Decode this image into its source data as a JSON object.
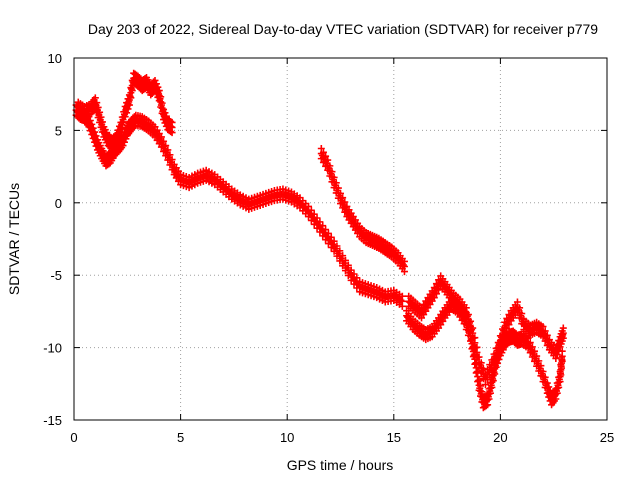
{
  "chart_data": {
    "type": "scatter",
    "title": "Day 203 of 2022, Sidereal Day-to-day VTEC variation (SDTVAR) for receiver p779",
    "xlabel": "GPS time / hours",
    "ylabel": "SDTVAR / TECUs",
    "xlim": [
      0,
      25
    ],
    "ylim": [
      -15,
      10
    ],
    "x_ticks": [
      "0",
      "5",
      "10",
      "15",
      "20",
      "25"
    ],
    "y_ticks": [
      "10",
      "5",
      "0",
      "-5",
      "-10",
      "-15"
    ],
    "grid": true,
    "marker": "+",
    "color": "#ff0000",
    "series": [
      {
        "name": "track-main",
        "points": [
          [
            0.1,
            6.4
          ],
          [
            0.3,
            6.1
          ],
          [
            0.5,
            6.0
          ],
          [
            0.7,
            5.6
          ],
          [
            0.9,
            4.8
          ],
          [
            1.1,
            4.0
          ],
          [
            1.3,
            3.4
          ],
          [
            1.5,
            2.9
          ],
          [
            1.7,
            3.1
          ],
          [
            1.9,
            3.6
          ],
          [
            2.1,
            3.9
          ],
          [
            2.3,
            4.3
          ],
          [
            2.5,
            5.0
          ],
          [
            2.7,
            5.4
          ],
          [
            2.9,
            5.7
          ],
          [
            3.2,
            5.6
          ],
          [
            3.5,
            5.3
          ],
          [
            3.8,
            4.9
          ],
          [
            4.1,
            4.2
          ],
          [
            4.4,
            3.3
          ],
          [
            4.7,
            2.3
          ],
          [
            5.0,
            1.6
          ],
          [
            5.4,
            1.4
          ],
          [
            5.8,
            1.7
          ],
          [
            6.2,
            1.9
          ],
          [
            6.6,
            1.6
          ],
          [
            7.0,
            1.1
          ],
          [
            7.4,
            0.6
          ],
          [
            7.8,
            0.2
          ],
          [
            8.2,
            -0.1
          ],
          [
            8.6,
            0.1
          ],
          [
            9.0,
            0.3
          ],
          [
            9.4,
            0.5
          ],
          [
            9.8,
            0.6
          ],
          [
            10.2,
            0.4
          ],
          [
            10.6,
            0.0
          ],
          [
            11.0,
            -0.6
          ],
          [
            11.4,
            -1.4
          ],
          [
            11.8,
            -2.2
          ],
          [
            12.2,
            -3.0
          ],
          [
            12.6,
            -4.0
          ],
          [
            13.0,
            -5.0
          ],
          [
            13.4,
            -5.8
          ],
          [
            13.8,
            -6.0
          ],
          [
            14.2,
            -6.2
          ],
          [
            14.6,
            -6.5
          ],
          [
            15.0,
            -6.4
          ],
          [
            15.4,
            -6.8
          ]
        ]
      },
      {
        "name": "track-upper-morning",
        "points": [
          [
            0.2,
            6.6
          ],
          [
            0.5,
            6.3
          ],
          [
            0.8,
            6.5
          ],
          [
            1.0,
            6.9
          ],
          [
            1.2,
            5.9
          ],
          [
            1.4,
            4.9
          ],
          [
            1.6,
            4.3
          ],
          [
            1.8,
            4.1
          ],
          [
            2.0,
            4.4
          ],
          [
            2.2,
            5.2
          ],
          [
            2.4,
            6.3
          ],
          [
            2.6,
            7.1
          ],
          [
            2.8,
            8.6
          ],
          [
            3.0,
            8.4
          ],
          [
            3.2,
            8.1
          ],
          [
            3.4,
            8.3
          ],
          [
            3.6,
            7.8
          ],
          [
            3.8,
            8.1
          ],
          [
            4.0,
            7.4
          ],
          [
            4.2,
            6.1
          ],
          [
            4.4,
            5.4
          ],
          [
            4.6,
            5.2
          ]
        ]
      },
      {
        "name": "track-sharp",
        "points": [
          [
            11.6,
            3.4
          ],
          [
            11.9,
            2.6
          ],
          [
            12.2,
            1.4
          ],
          [
            12.5,
            0.3
          ],
          [
            12.8,
            -0.6
          ],
          [
            13.1,
            -1.3
          ],
          [
            13.4,
            -2.0
          ],
          [
            13.7,
            -2.4
          ],
          [
            14.0,
            -2.6
          ],
          [
            14.3,
            -2.8
          ],
          [
            14.6,
            -3.1
          ],
          [
            14.9,
            -3.4
          ],
          [
            15.2,
            -3.8
          ],
          [
            15.5,
            -4.4
          ]
        ]
      },
      {
        "name": "track-evening",
        "points": [
          [
            15.6,
            -7.8
          ],
          [
            15.9,
            -8.4
          ],
          [
            16.2,
            -8.8
          ],
          [
            16.5,
            -9.1
          ],
          [
            16.8,
            -8.9
          ],
          [
            17.1,
            -8.3
          ],
          [
            17.4,
            -7.6
          ],
          [
            17.7,
            -7.0
          ],
          [
            18.0,
            -7.3
          ],
          [
            18.3,
            -8.0
          ],
          [
            18.6,
            -9.2
          ],
          [
            18.8,
            -10.8
          ],
          [
            19.0,
            -12.6
          ],
          [
            19.2,
            -13.8
          ],
          [
            19.4,
            -13.6
          ],
          [
            19.6,
            -12.4
          ],
          [
            19.8,
            -11.0
          ],
          [
            20.0,
            -10.2
          ],
          [
            20.2,
            -9.6
          ],
          [
            20.4,
            -9.3
          ],
          [
            20.6,
            -9.2
          ],
          [
            20.8,
            -9.5
          ],
          [
            21.0,
            -9.4
          ],
          [
            21.3,
            -9.7
          ],
          [
            21.6,
            -10.6
          ],
          [
            21.9,
            -11.6
          ],
          [
            22.2,
            -12.8
          ],
          [
            22.4,
            -13.6
          ],
          [
            22.6,
            -13.2
          ],
          [
            22.8,
            -12.0
          ],
          [
            22.9,
            -10.6
          ]
        ]
      },
      {
        "name": "track-evening-upper",
        "points": [
          [
            15.7,
            -6.8
          ],
          [
            16.0,
            -7.2
          ],
          [
            16.3,
            -7.6
          ],
          [
            16.6,
            -6.9
          ],
          [
            16.9,
            -6.2
          ],
          [
            17.2,
            -5.4
          ],
          [
            17.5,
            -6.0
          ],
          [
            17.8,
            -6.6
          ],
          [
            18.1,
            -7.0
          ],
          [
            18.4,
            -7.6
          ],
          [
            18.7,
            -9.0
          ],
          [
            19.0,
            -11.0
          ],
          [
            19.3,
            -12.2
          ],
          [
            19.6,
            -11.2
          ],
          [
            19.9,
            -10.0
          ],
          [
            20.2,
            -8.6
          ],
          [
            20.5,
            -7.8
          ],
          [
            20.8,
            -7.2
          ],
          [
            21.1,
            -8.4
          ],
          [
            21.4,
            -8.8
          ],
          [
            21.7,
            -8.6
          ],
          [
            22.0,
            -8.9
          ],
          [
            22.3,
            -9.8
          ],
          [
            22.6,
            -10.4
          ],
          [
            22.8,
            -9.6
          ],
          [
            22.95,
            -9.0
          ]
        ]
      }
    ]
  }
}
